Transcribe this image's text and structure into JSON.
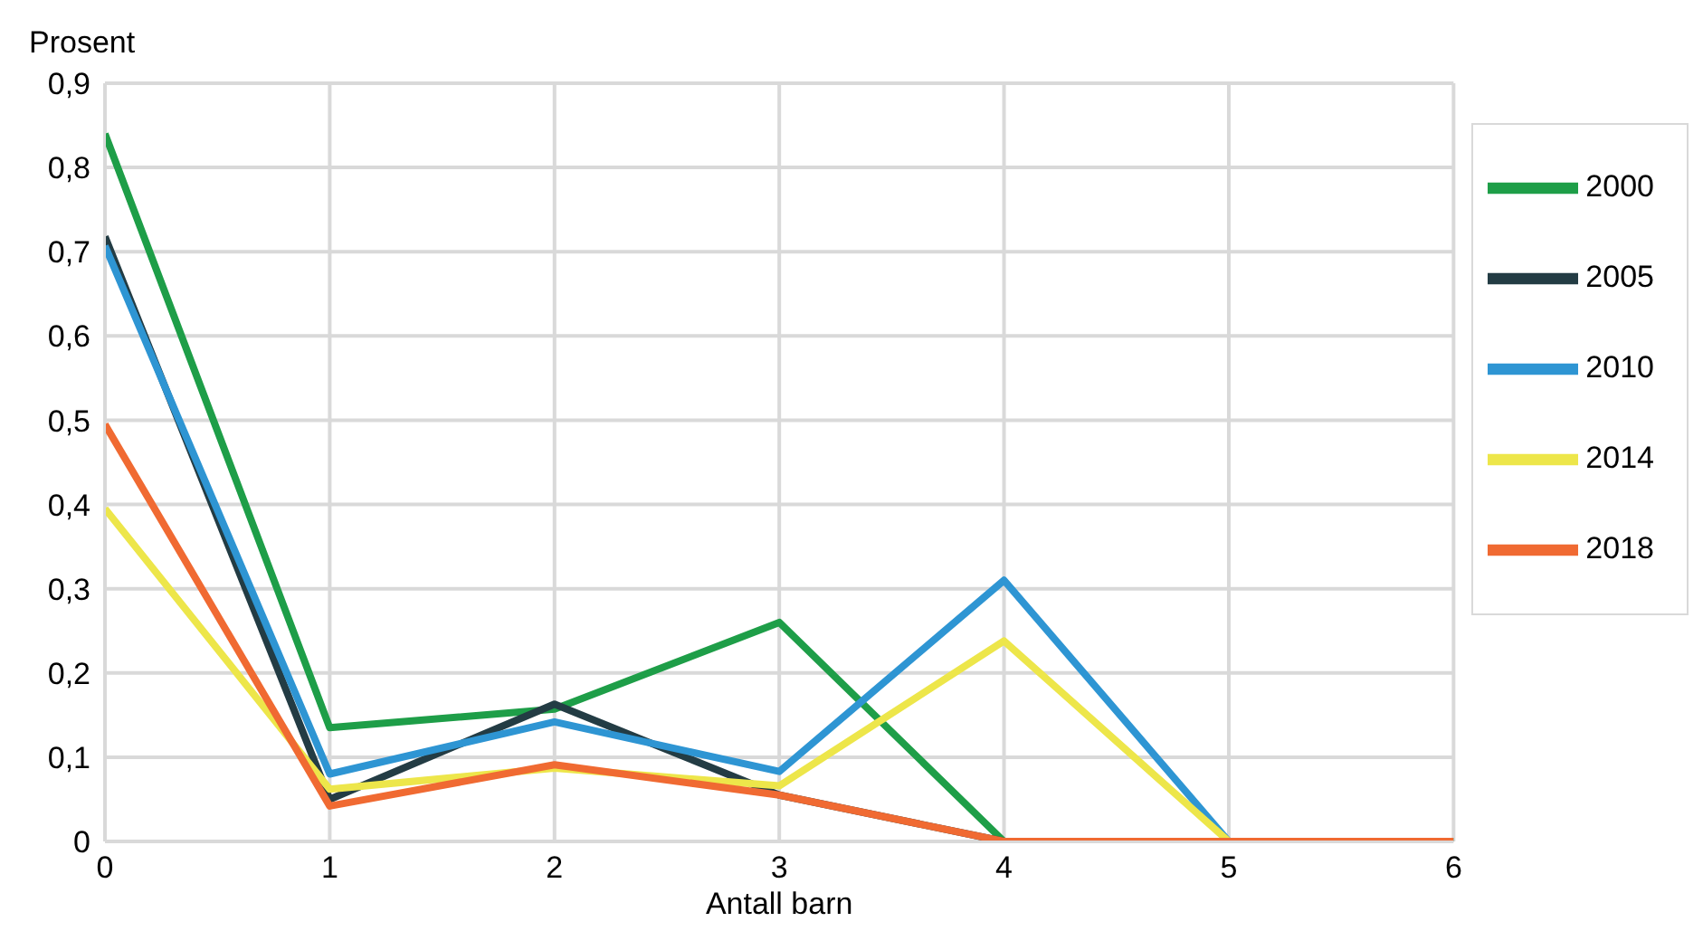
{
  "chart_data": {
    "type": "line",
    "ylabel": "Prosent",
    "xlabel": "Antall barn",
    "x": [
      0,
      1,
      2,
      3,
      4,
      5,
      6
    ],
    "series": [
      {
        "name": "2000",
        "color": "#1e9e48",
        "values": [
          0.84,
          0.135,
          0.157,
          0.26,
          0,
          0,
          0
        ]
      },
      {
        "name": "2005",
        "color": "#233c44",
        "values": [
          0.718,
          0.05,
          0.163,
          0.055,
          0,
          0,
          0
        ]
      },
      {
        "name": "2010",
        "color": "#2e95d3",
        "values": [
          0.707,
          0.08,
          0.142,
          0.083,
          0.31,
          0,
          0
        ]
      },
      {
        "name": "2014",
        "color": "#ede64a",
        "values": [
          0.395,
          0.062,
          0.087,
          0.066,
          0.238,
          0,
          0
        ]
      },
      {
        "name": "2018",
        "color": "#f06a32",
        "values": [
          0.495,
          0.042,
          0.091,
          0.055,
          0,
          0,
          0
        ]
      }
    ],
    "xlim": [
      0,
      6
    ],
    "xticks": [
      0,
      1,
      2,
      3,
      4,
      5,
      6
    ],
    "ylim": [
      0,
      0.9
    ],
    "yticks": [
      0,
      {
        "value": 0.1,
        "label": "0,1"
      },
      {
        "value": 0.2,
        "label": "0,2"
      },
      {
        "value": 0.3,
        "label": "0,3"
      },
      {
        "value": 0.4,
        "label": "0,4"
      },
      {
        "value": 0.5,
        "label": "0,5"
      },
      {
        "value": 0.6,
        "label": "0,6"
      },
      {
        "value": 0.7,
        "label": "0,7"
      },
      {
        "value": 0.8,
        "label": "0,8"
      },
      {
        "value": 0.9,
        "label": "0,9"
      }
    ],
    "grid": true,
    "legend": "right",
    "marker": "none",
    "line_style": "solid"
  }
}
